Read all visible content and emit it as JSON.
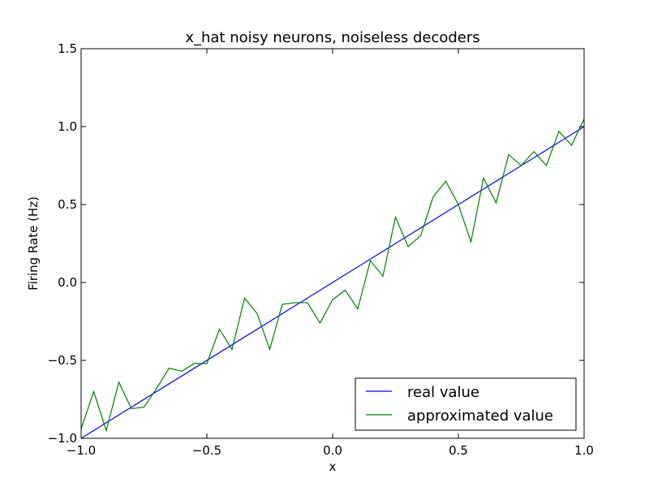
{
  "chart_data": {
    "type": "line",
    "title": "x_hat noisy neurons, noiseless decoders",
    "xlabel": "x",
    "ylabel": "Firing Rate (Hz)",
    "xlim": [
      -1.0,
      1.0
    ],
    "ylim": [
      -1.0,
      1.5
    ],
    "xticks": [
      -1.0,
      -0.5,
      0.0,
      0.5,
      1.0
    ],
    "xtick_labels": [
      "−1.0",
      "−0.5",
      "0.0",
      "0.5",
      "1.0"
    ],
    "yticks": [
      -1.0,
      -0.5,
      0.0,
      0.5,
      1.0,
      1.5
    ],
    "ytick_labels": [
      "−1.0",
      "−0.5",
      "0.0",
      "0.5",
      "1.0",
      "1.5"
    ],
    "grid": false,
    "legend_position": "lower-right",
    "series": [
      {
        "name": "real value",
        "color": "#0000ff",
        "x": [
          -1.0,
          1.0
        ],
        "y": [
          -1.0,
          1.0
        ]
      },
      {
        "name": "approximated value",
        "color": "#008000",
        "x": [
          -1.0,
          -0.95,
          -0.9,
          -0.85,
          -0.8,
          -0.75,
          -0.7,
          -0.65,
          -0.6,
          -0.55,
          -0.5,
          -0.45,
          -0.4,
          -0.35,
          -0.3,
          -0.25,
          -0.2,
          -0.15,
          -0.1,
          -0.05,
          0.0,
          0.05,
          0.1,
          0.15,
          0.2,
          0.25,
          0.3,
          0.35,
          0.4,
          0.45,
          0.5,
          0.55,
          0.6,
          0.65,
          0.7,
          0.75,
          0.8,
          0.85,
          0.9,
          0.95,
          1.0
        ],
        "y": [
          -0.94,
          -0.7,
          -0.95,
          -0.64,
          -0.81,
          -0.8,
          -0.68,
          -0.55,
          -0.57,
          -0.52,
          -0.52,
          -0.3,
          -0.43,
          -0.1,
          -0.2,
          -0.43,
          -0.14,
          -0.13,
          -0.13,
          -0.26,
          -0.11,
          -0.05,
          -0.17,
          0.14,
          0.04,
          0.42,
          0.23,
          0.3,
          0.55,
          0.65,
          0.5,
          0.26,
          0.67,
          0.51,
          0.82,
          0.75,
          0.84,
          0.75,
          0.97,
          0.88,
          1.05
        ]
      }
    ]
  }
}
